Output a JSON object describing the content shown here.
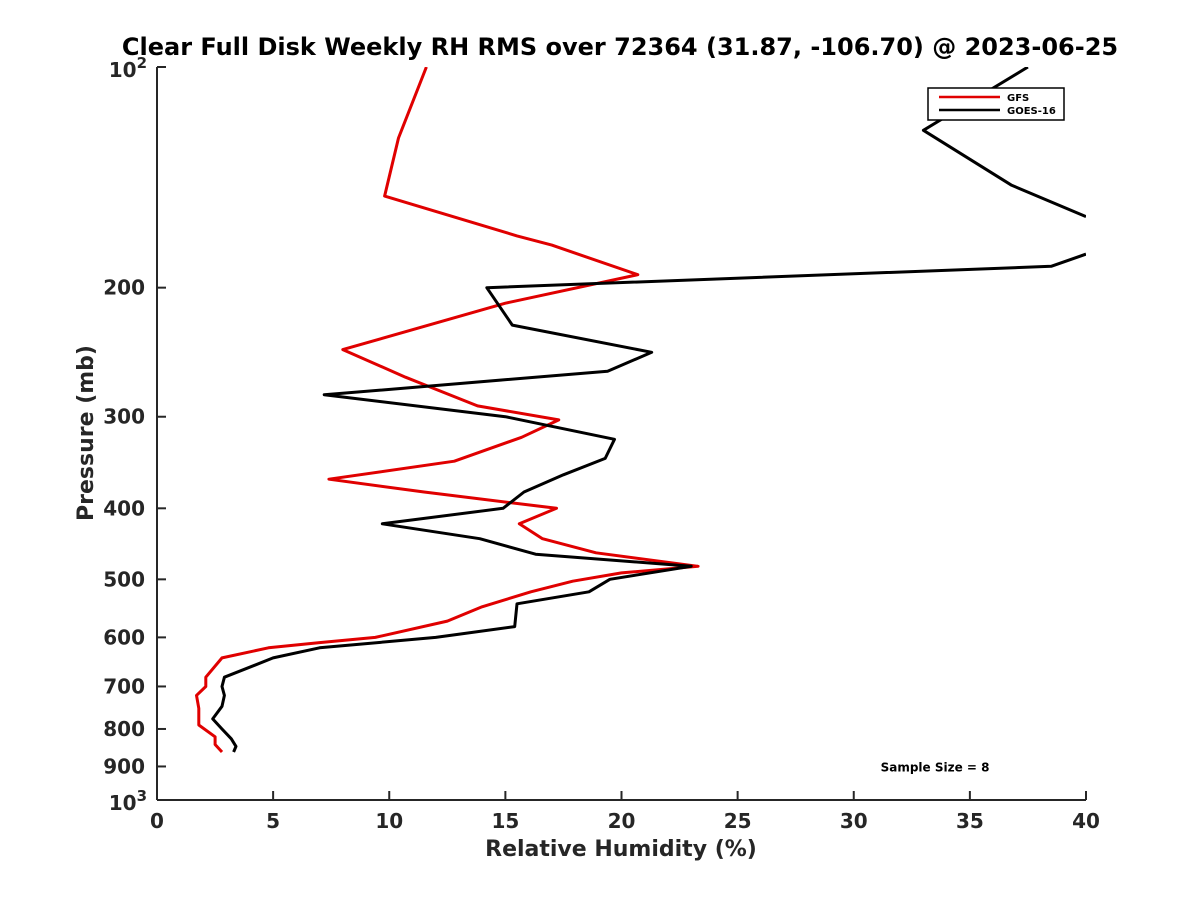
{
  "chart_data": {
    "type": "line",
    "title": "Clear Full Disk Weekly RH RMS over 72364 (31.87, -106.70) @ 2023-06-25",
    "xlabel": "Relative Humidity (%)",
    "ylabel": "Pressure (mb)",
    "xlim": [
      0,
      40
    ],
    "ylim": [
      100,
      1000
    ],
    "yscale": "log",
    "y_reversed": true,
    "grid": false,
    "legend_position": "top-right",
    "x_ticks": [
      0,
      5,
      10,
      15,
      20,
      25,
      30,
      35,
      40
    ],
    "y_ticks": [
      {
        "value": 100,
        "base": "10",
        "exp": "2"
      },
      {
        "value": 200,
        "label": "200"
      },
      {
        "value": 300,
        "label": "300"
      },
      {
        "value": 400,
        "label": "400"
      },
      {
        "value": 500,
        "label": "500"
      },
      {
        "value": 600,
        "label": "600"
      },
      {
        "value": 700,
        "label": "700"
      },
      {
        "value": 800,
        "label": "800"
      },
      {
        "value": 900,
        "label": "900"
      },
      {
        "value": 1000,
        "base": "10",
        "exp": "3"
      }
    ],
    "series": [
      {
        "name": "GFS",
        "color": "#e00000",
        "points": [
          {
            "x": 11.6,
            "y": 100
          },
          {
            "x": 10.4,
            "y": 125
          },
          {
            "x": 9.8,
            "y": 150
          },
          {
            "x": 15.5,
            "y": 170
          },
          {
            "x": 17.0,
            "y": 175
          },
          {
            "x": 20.7,
            "y": 192
          },
          {
            "x": 15.0,
            "y": 210
          },
          {
            "x": 8.0,
            "y": 243
          },
          {
            "x": 10.7,
            "y": 265
          },
          {
            "x": 13.8,
            "y": 290
          },
          {
            "x": 17.3,
            "y": 303
          },
          {
            "x": 15.7,
            "y": 320
          },
          {
            "x": 12.8,
            "y": 345
          },
          {
            "x": 7.4,
            "y": 365
          },
          {
            "x": 11.5,
            "y": 380
          },
          {
            "x": 17.2,
            "y": 400
          },
          {
            "x": 15.6,
            "y": 420
          },
          {
            "x": 16.6,
            "y": 440
          },
          {
            "x": 18.9,
            "y": 460
          },
          {
            "x": 23.3,
            "y": 480
          },
          {
            "x": 20.0,
            "y": 490
          },
          {
            "x": 17.9,
            "y": 503
          },
          {
            "x": 16.1,
            "y": 520
          },
          {
            "x": 14.0,
            "y": 545
          },
          {
            "x": 12.5,
            "y": 570
          },
          {
            "x": 9.4,
            "y": 600
          },
          {
            "x": 7.0,
            "y": 610
          },
          {
            "x": 4.8,
            "y": 620
          },
          {
            "x": 2.8,
            "y": 640
          },
          {
            "x": 2.1,
            "y": 680
          },
          {
            "x": 2.1,
            "y": 700
          },
          {
            "x": 1.7,
            "y": 720
          },
          {
            "x": 1.8,
            "y": 750
          },
          {
            "x": 1.8,
            "y": 790
          },
          {
            "x": 2.5,
            "y": 820
          },
          {
            "x": 2.5,
            "y": 840
          },
          {
            "x": 2.8,
            "y": 860
          }
        ]
      },
      {
        "name": "GOES-16",
        "color": "#000000",
        "points": [
          {
            "x": 37.5,
            "y": 100
          },
          {
            "x": 33.0,
            "y": 122
          },
          {
            "x": 36.8,
            "y": 145
          },
          {
            "x": 40.0,
            "y": 160
          },
          {
            "x": null,
            "y": 168
          },
          {
            "x": 40.0,
            "y": 180
          },
          {
            "x": 38.5,
            "y": 187
          },
          {
            "x": 14.2,
            "y": 200
          },
          {
            "x": 15.3,
            "y": 225
          },
          {
            "x": 21.3,
            "y": 245
          },
          {
            "x": 19.4,
            "y": 260
          },
          {
            "x": 7.2,
            "y": 280
          },
          {
            "x": 15.0,
            "y": 300
          },
          {
            "x": 19.7,
            "y": 322
          },
          {
            "x": 19.3,
            "y": 342
          },
          {
            "x": 17.5,
            "y": 360
          },
          {
            "x": 15.8,
            "y": 380
          },
          {
            "x": 14.9,
            "y": 400
          },
          {
            "x": 9.7,
            "y": 420
          },
          {
            "x": 13.9,
            "y": 440
          },
          {
            "x": 16.3,
            "y": 462
          },
          {
            "x": 23.0,
            "y": 480
          },
          {
            "x": 19.5,
            "y": 500
          },
          {
            "x": 18.6,
            "y": 520
          },
          {
            "x": 15.5,
            "y": 540
          },
          {
            "x": 15.4,
            "y": 580
          },
          {
            "x": 12.0,
            "y": 600
          },
          {
            "x": 7.0,
            "y": 620
          },
          {
            "x": 5.0,
            "y": 640
          },
          {
            "x": 4.2,
            "y": 655
          },
          {
            "x": 2.9,
            "y": 680
          },
          {
            "x": 2.8,
            "y": 700
          },
          {
            "x": 2.9,
            "y": 720
          },
          {
            "x": 2.8,
            "y": 745
          },
          {
            "x": 2.4,
            "y": 775
          },
          {
            "x": 2.8,
            "y": 800
          },
          {
            "x": 3.2,
            "y": 825
          },
          {
            "x": 3.4,
            "y": 845
          },
          {
            "x": 3.3,
            "y": 860
          }
        ]
      }
    ],
    "annotations": [
      {
        "text": "Sample Size = 8",
        "x": 33.5,
        "y": 900
      }
    ]
  }
}
